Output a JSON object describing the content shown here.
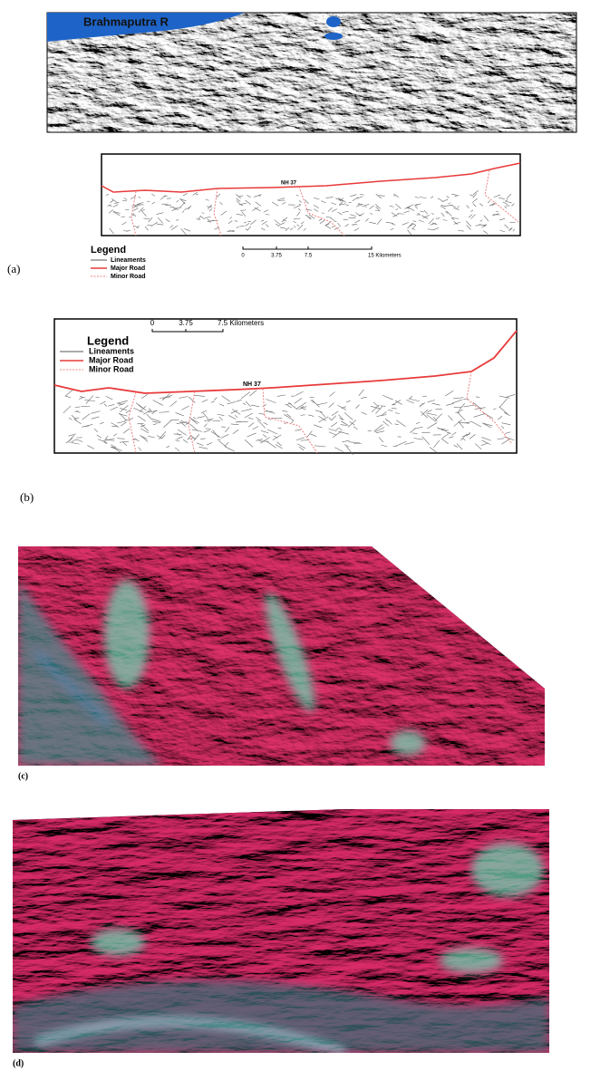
{
  "panels": [
    {
      "label": "(a)",
      "river": "Brahmaputra R",
      "road": "NH 37",
      "legend": {
        "title": "Legend",
        "items": [
          "Lineaments",
          "Major Road",
          "Minor Road"
        ]
      },
      "scale": [
        "0",
        "3.75",
        "7.5",
        "15 Kilometers"
      ]
    },
    {
      "label": "(b)",
      "road": "NH 37",
      "legend": {
        "title": "Legend",
        "items": [
          "Lineaments",
          "Major Road",
          "Minor Road"
        ]
      },
      "scale": [
        "0",
        "3.75",
        "7.5 Kilometers"
      ]
    },
    {
      "label": "(c)"
    },
    {
      "label": "(d)"
    }
  ]
}
